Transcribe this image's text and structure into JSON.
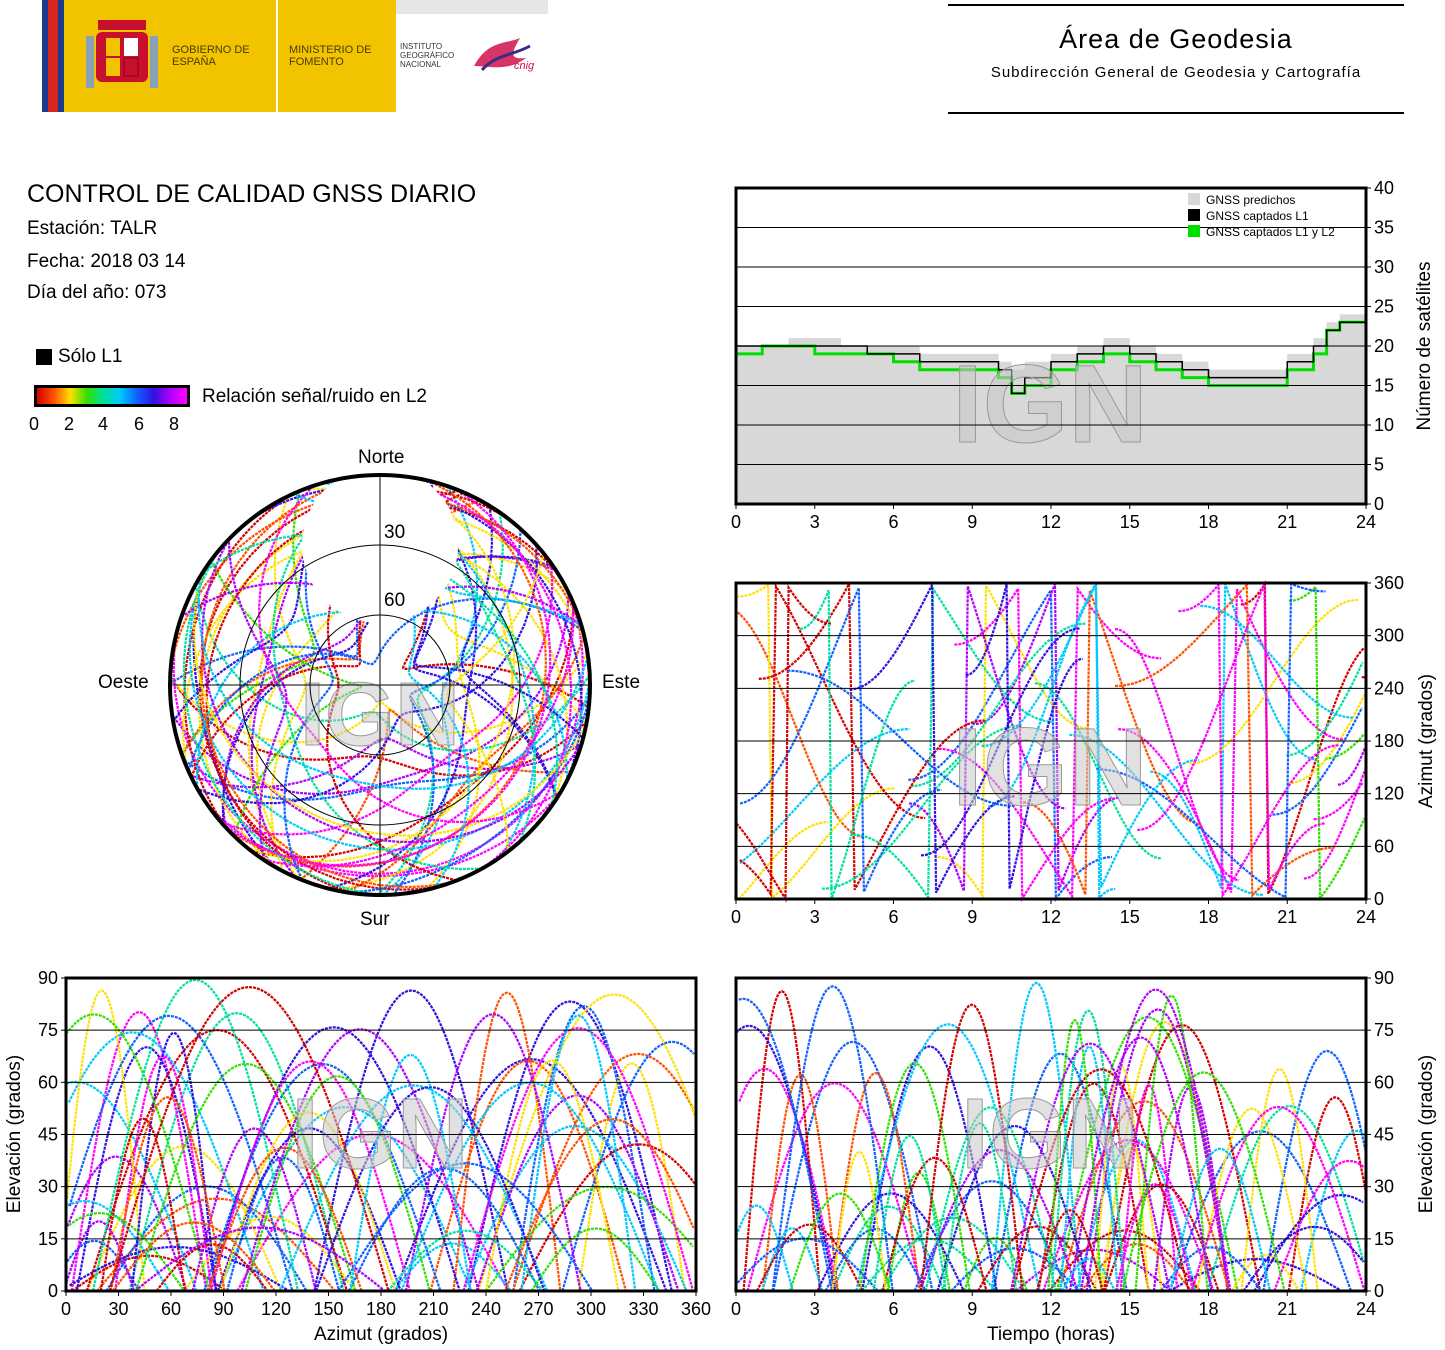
{
  "header": {
    "logo_gobierno": "GOBIERNO DE ESPAÑA",
    "logo_ministerio": "MINISTERIO DE FOMENTO",
    "logo_ign": "INSTITUTO GEOGRÁFICO NACIONAL",
    "logo_cnig": "cnig",
    "area_title": "Área de Geodesia",
    "area_subtitle": "Subdirección General de Geodesia y Cartografía"
  },
  "info": {
    "title": "CONTROL DE CALIDAD GNSS DIARIO",
    "station": "Estación: TALR",
    "date": "Fecha: 2018 03 14",
    "doy": "Día del año: 073"
  },
  "legend": {
    "l1_only": "Sólo L1",
    "snr_label": "Relación señal/ruido en L2",
    "snr_ticks": [
      "0",
      "2",
      "4",
      "6",
      "8"
    ],
    "colorscale": [
      "#d40000",
      "#ff5000",
      "#ffe000",
      "#30e000",
      "#00e0a0",
      "#00c8ff",
      "#1060ff",
      "#3010e0",
      "#b000ff",
      "#ff00ff"
    ]
  },
  "watermark": "IGN",
  "chart_data": [
    {
      "type": "polar",
      "id": "skyplot",
      "labels": {
        "north": "Norte",
        "south": "Sur",
        "east": "Este",
        "west": "Oeste"
      },
      "rings": [
        30,
        60
      ],
      "ring_labels": [
        "30",
        "60"
      ],
      "note_tracks": "dense satellite tracks colored by L2 SNR; empty cap toward north"
    },
    {
      "type": "area",
      "id": "satellite-count",
      "xlim": [
        0,
        24
      ],
      "ylim": [
        0,
        40
      ],
      "xticks": [
        "0",
        "3",
        "6",
        "9",
        "12",
        "15",
        "18",
        "21",
        "24"
      ],
      "yticks": [
        "0",
        "5",
        "10",
        "15",
        "20",
        "25",
        "30",
        "35",
        "40"
      ],
      "ylabel": "Número de satélites",
      "legend": [
        "GNSS predichos",
        "GNSS captados L1",
        "GNSS captados L1 y L2"
      ],
      "series_colors": [
        "#d8d8d8",
        "#000000",
        "#00e000"
      ],
      "x": [
        0,
        1,
        2,
        3,
        4,
        5,
        6,
        7,
        8,
        9,
        10,
        10.5,
        11,
        12,
        13,
        14,
        15,
        16,
        17,
        18,
        19,
        20,
        21,
        22,
        22.5,
        23,
        24
      ],
      "predicted": [
        20,
        20,
        21,
        21,
        20,
        20,
        20,
        19,
        19,
        19,
        18,
        17,
        18,
        19,
        20,
        21,
        20,
        19,
        18,
        17,
        17,
        17,
        19,
        21,
        23,
        24,
        24
      ],
      "l1": [
        20,
        20,
        20,
        20,
        20,
        19,
        19,
        18,
        18,
        18,
        17,
        14,
        16,
        18,
        19,
        20,
        19,
        18,
        17,
        16,
        16,
        16,
        18,
        20,
        22,
        23,
        23
      ],
      "l1_l2": [
        19,
        20,
        20,
        19,
        19,
        19,
        18,
        17,
        17,
        17,
        16,
        14,
        15,
        17,
        18,
        19,
        18,
        17,
        16,
        15,
        15,
        15,
        17,
        19,
        22,
        23,
        23
      ]
    },
    {
      "type": "scatter",
      "id": "azimuth-time",
      "xlim": [
        0,
        24
      ],
      "ylim": [
        0,
        360
      ],
      "xticks": [
        "0",
        "3",
        "6",
        "9",
        "12",
        "15",
        "18",
        "21",
        "24"
      ],
      "yticks": [
        "0",
        "60",
        "120",
        "180",
        "240",
        "300",
        "360"
      ],
      "ylabel": "Azimut (grados)"
    },
    {
      "type": "scatter",
      "id": "elevation-azimuth",
      "xlim": [
        0,
        360
      ],
      "ylim": [
        0,
        90
      ],
      "xticks": [
        "0",
        "30",
        "60",
        "90",
        "120",
        "150",
        "180",
        "210",
        "240",
        "270",
        "300",
        "330",
        "360"
      ],
      "yticks": [
        "0",
        "15",
        "30",
        "45",
        "60",
        "75",
        "90"
      ],
      "xlabel": "Azimut (grados)",
      "ylabel": "Elevación (grados)"
    },
    {
      "type": "scatter",
      "id": "elevation-time",
      "xlim": [
        0,
        24
      ],
      "ylim": [
        0,
        90
      ],
      "xticks": [
        "0",
        "3",
        "6",
        "9",
        "12",
        "15",
        "18",
        "21",
        "24"
      ],
      "yticks": [
        "0",
        "15",
        "30",
        "45",
        "60",
        "75",
        "90"
      ],
      "xlabel": "Tiempo (horas)",
      "ylabel": "Elevación (grados)"
    }
  ]
}
